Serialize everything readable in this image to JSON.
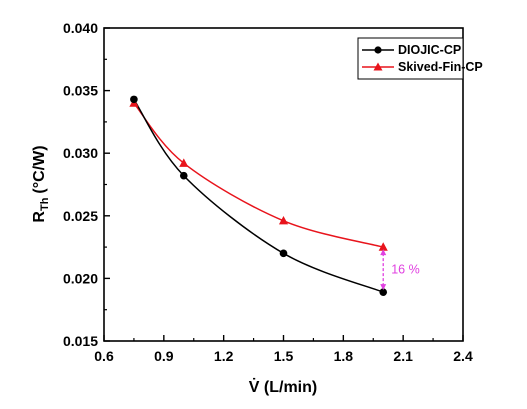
{
  "chart_data": {
    "type": "line",
    "xlabel": "V̇ (L/min)",
    "ylabel_main": "R",
    "ylabel_sub": "Th",
    "ylabel_unit": "(°C/W)",
    "xlim": [
      0.6,
      2.4
    ],
    "ylim": [
      0.015,
      0.04
    ],
    "xticks": [
      "0.6",
      "0.9",
      "1.2",
      "1.5",
      "1.8",
      "2.1",
      "2.4"
    ],
    "yticks": [
      "0.015",
      "0.020",
      "0.025",
      "0.030",
      "0.035",
      "0.040"
    ],
    "grid": false,
    "legend_position": "top-right",
    "series": [
      {
        "name": "DIOJIC-CP",
        "color": "#000000",
        "marker": "circle",
        "x": [
          0.75,
          1.0,
          1.5,
          2.0
        ],
        "y": [
          0.0343,
          0.0282,
          0.022,
          0.0189
        ]
      },
      {
        "name": "Skived-Fin-CP",
        "color": "#e8141c",
        "marker": "triangle",
        "x": [
          0.75,
          1.0,
          1.5,
          2.0
        ],
        "y": [
          0.034,
          0.0292,
          0.0246,
          0.0225
        ]
      }
    ],
    "annotation": {
      "text": "16 %",
      "color": "#e040e0",
      "x": 2.0,
      "y_from": 0.0225,
      "y_to": 0.0189
    }
  }
}
